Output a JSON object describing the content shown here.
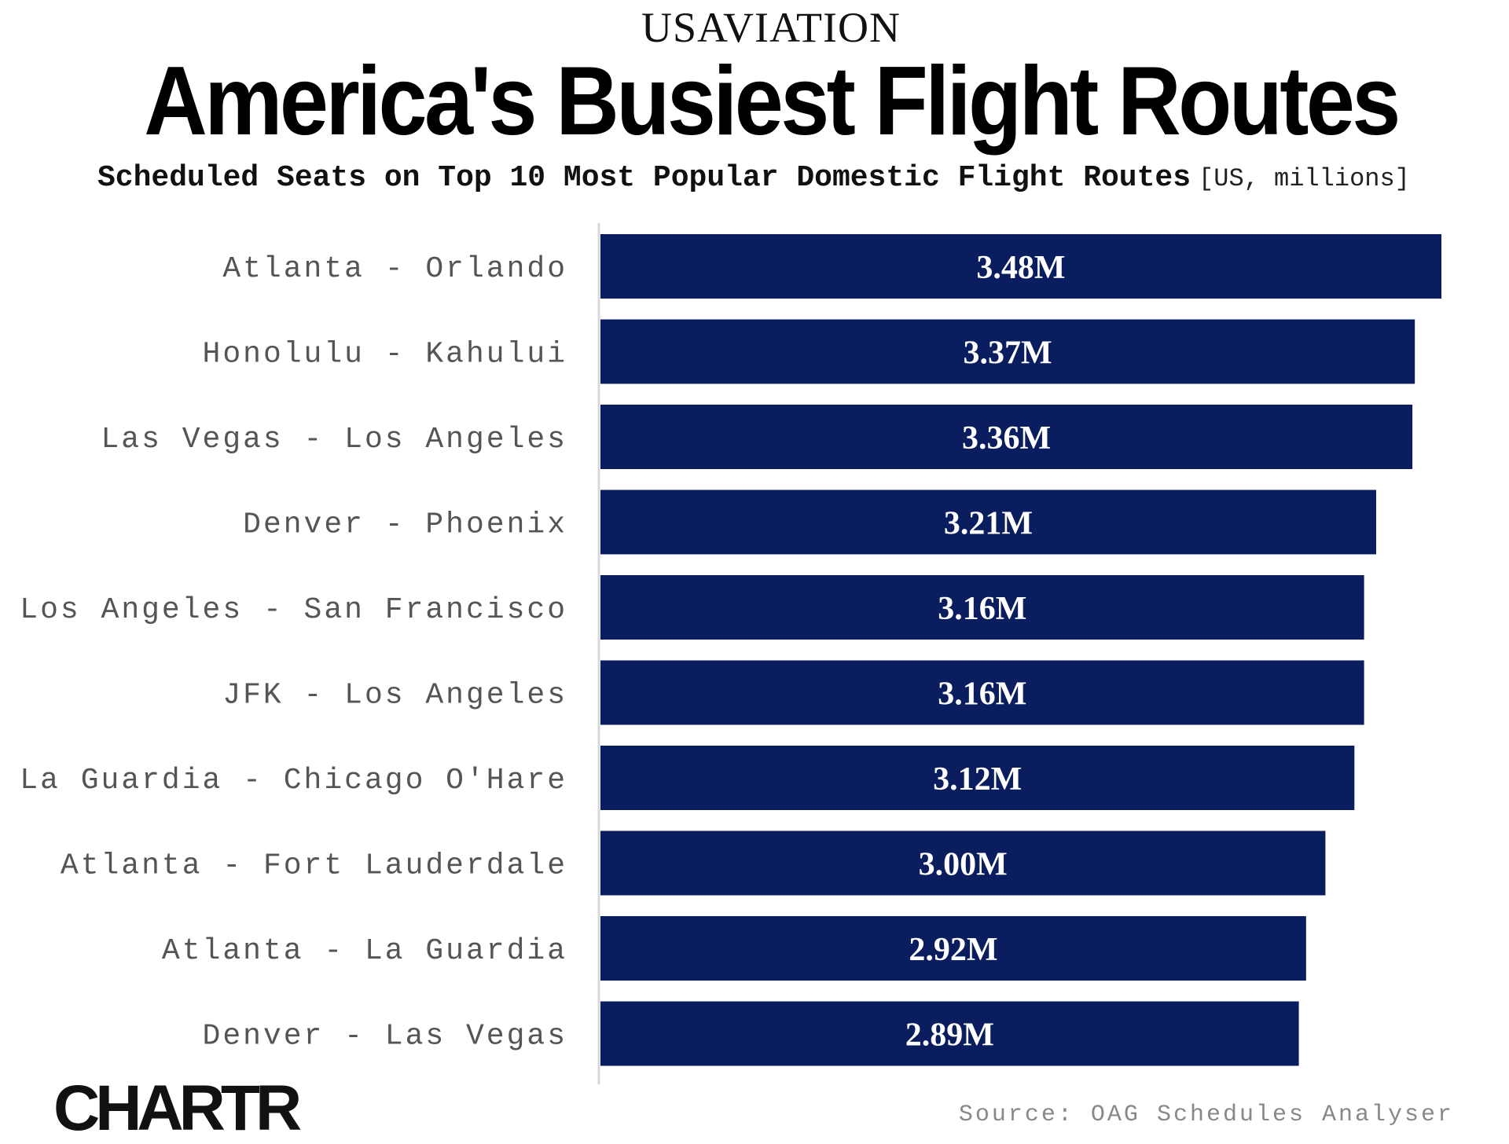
{
  "header": {
    "brand": "USAVIATION",
    "title": "America's Busiest Flight Routes",
    "subtitle": "Scheduled Seats on Top 10 Most Popular Domestic Flight Routes",
    "unit": "[US, millions]"
  },
  "footer": {
    "logo": "CHARTR",
    "source": "Source: OAG Schedules Analyser"
  },
  "chart_data": {
    "type": "bar",
    "orientation": "horizontal",
    "title": "America's Busiest Flight Routes",
    "subtitle": "Scheduled Seats on Top 10 Most Popular Domestic Flight Routes",
    "unit": "[US, millions]",
    "categories": [
      "Atlanta - Orlando",
      "Honolulu - Kahului",
      "Las Vegas - Los Angeles",
      "Denver - Phoenix",
      "Los Angeles - San Francisco",
      "JFK - Los Angeles",
      "La Guardia - Chicago O'Hare",
      "Atlanta - Fort Lauderdale",
      "Atlanta - La Guardia",
      "Denver - Las Vegas"
    ],
    "values": [
      3.48,
      3.37,
      3.36,
      3.21,
      3.16,
      3.16,
      3.12,
      3.0,
      2.92,
      2.89
    ],
    "data_labels": [
      "3.48M",
      "3.37M",
      "3.36M",
      "3.21M",
      "3.16M",
      "3.16M",
      "3.12M",
      "3.00M",
      "2.92M",
      "2.89M"
    ],
    "xlim": [
      0,
      3.48
    ],
    "grid": false,
    "legend": "none",
    "bar_color": "#0a1d5e"
  }
}
